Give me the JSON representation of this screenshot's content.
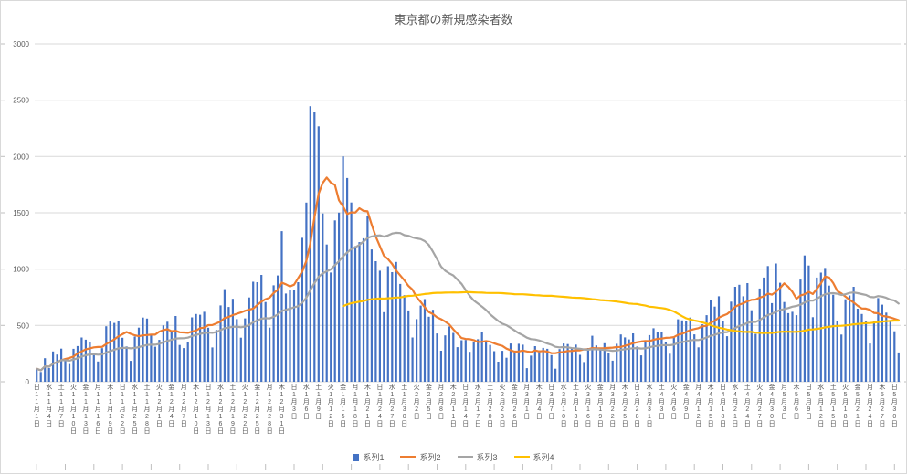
{
  "chart": {
    "title": "東京都の新規感染者数",
    "colors": {
      "background": "#FFFFFF",
      "border": "#D9D9D9",
      "grid": "#D9D9D9",
      "axis_text": "#595959",
      "title_text": "#595959",
      "frame_tick": "#BFBFBF"
    },
    "legend": [
      {
        "label": "系列1",
        "color": "#4472C4",
        "marker": "bar"
      },
      {
        "label": "系列2",
        "color": "#ED7D31",
        "marker": "line"
      },
      {
        "label": "系列3",
        "color": "#A5A5A5",
        "marker": "line"
      },
      {
        "label": "系列4",
        "color": "#FFC000",
        "marker": "line"
      }
    ]
  },
  "chart_data": {
    "type": "bar",
    "title": "東京都の新規感染者数",
    "start_date": "2020-11-01",
    "end_date": "2021-05-31",
    "ylim": [
      0,
      3000
    ],
    "y_ticks": [
      0,
      500,
      1000,
      1500,
      2000,
      2500,
      3000
    ],
    "grid": true,
    "legend_position": "bottom",
    "x_tick_interval_days": 3,
    "x_tick_labels": [
      "日11月1日",
      "水11月4日",
      "土11月7日",
      "火11月10日",
      "金11月13日",
      "月11月16日",
      "木11月19日",
      "日11月22日",
      "水11月25日",
      "土11月28日",
      "火12月1日",
      "金12月4日",
      "月12月7日",
      "木12月10日",
      "日12月13日",
      "水12月16日",
      "土12月19日",
      "火12月22日",
      "金12月25日",
      "月12月28日",
      "木12月31日",
      "日1月3日",
      "水1月6日",
      "土1月9日",
      "火1月12日",
      "金1月15日",
      "月1月18日",
      "木1月21日",
      "日1月24日",
      "水1月27日",
      "土1月30日",
      "火2月2日",
      "金2月5日",
      "月2月8日",
      "木2月11日",
      "日2月14日",
      "水2月17日",
      "土2月20日",
      "火2月23日",
      "金2月26日",
      "月3月1日",
      "木3月4日",
      "日3月7日",
      "水3月10日",
      "土3月13日",
      "火3月16日",
      "金3月19日",
      "月3月22日",
      "木3月25日",
      "日3月28日",
      "水3月31日",
      "土4月3日",
      "火4月6日",
      "金4月9日",
      "月4月12日",
      "木4月15日",
      "日4月18日",
      "水4月21日",
      "土4月24日",
      "火4月27日",
      "金4月30日",
      "月5月3日",
      "木5月6日",
      "日5月9日",
      "水5月12日",
      "土5月15日",
      "火5月18日",
      "金5月21日",
      "月5月24日",
      "木5月27日",
      "日5月30日"
    ],
    "series": [
      {
        "name": "系列1",
        "type": "bar",
        "color": "#4472C4",
        "values": [
          116,
          87,
          209,
          122,
          269,
          242,
          294,
          189,
          157,
          293,
          317,
          393,
          374,
          352,
          255,
          180,
          298,
          493,
          534,
          522,
          539,
          391,
          314,
          186,
          401,
          481,
          570,
          561,
          418,
          311,
          372,
          500,
          533,
          449,
          584,
          327,
          299,
          352,
          572,
          602,
          595,
          621,
          480,
          305,
          460,
          678,
          822,
          664,
          736,
          556,
          392,
          563,
          748,
          888,
          884,
          949,
          708,
          481,
          856,
          944,
          1337,
          783,
          814,
          816,
          884,
          1278,
          1591,
          2447,
          2392,
          2268,
          1494,
          1219,
          970,
          1433,
          1502,
          2001,
          1809,
          1592,
          1204,
          1240,
          1274,
          1471,
          1175,
          1070,
          986,
          618,
          1026,
          973,
          1064,
          868,
          769,
          633,
          393,
          556,
          676,
          734,
          577,
          639,
          429,
          276,
          412,
          491,
          434,
          307,
          369,
          371,
          266,
          350,
          378,
          445,
          353,
          327,
          272,
          178,
          275,
          213,
          340,
          270,
          337,
          329,
          121,
          232,
          316,
          279,
          301,
          293,
          237,
          116,
          290,
          340,
          335,
          304,
          330,
          239,
          175,
          300,
          409,
          323,
          303,
          342,
          256,
          187,
          337,
          420,
          394,
          376,
          430,
          313,
          234,
          364,
          414,
          475,
          440,
          446,
          355,
          249,
          399,
          555,
          545,
          537,
          570,
          421,
          306,
          510,
          591,
          729,
          667,
          759,
          543,
          405,
          711,
          843,
          861,
          759,
          876,
          635,
          425,
          828,
          925,
          1027,
          698,
          1050,
          879,
          708,
          609,
          621,
          591,
          907,
          1121,
          1032,
          573,
          925,
          969,
          1010,
          854,
          772,
          542,
          419,
          732,
          766,
          843,
          649,
          602,
          535,
          340,
          542,
          743,
          684,
          614,
          539,
          448,
          260
        ]
      },
      {
        "name": "系列2",
        "type": "line",
        "color": "#ED7D31",
        "derived_from": "系列1",
        "derivation": "moving_average",
        "window": 7,
        "start_index": 0
      },
      {
        "name": "系列3",
        "type": "line",
        "color": "#A5A5A5",
        "derived_from": "系列1",
        "derivation": "moving_average",
        "window": 30,
        "start_index": 0
      },
      {
        "name": "系列4",
        "type": "line",
        "color": "#FFC000",
        "derived_from": "系列1",
        "derivation": "moving_average",
        "window": 90,
        "start_index": 75
      }
    ]
  }
}
